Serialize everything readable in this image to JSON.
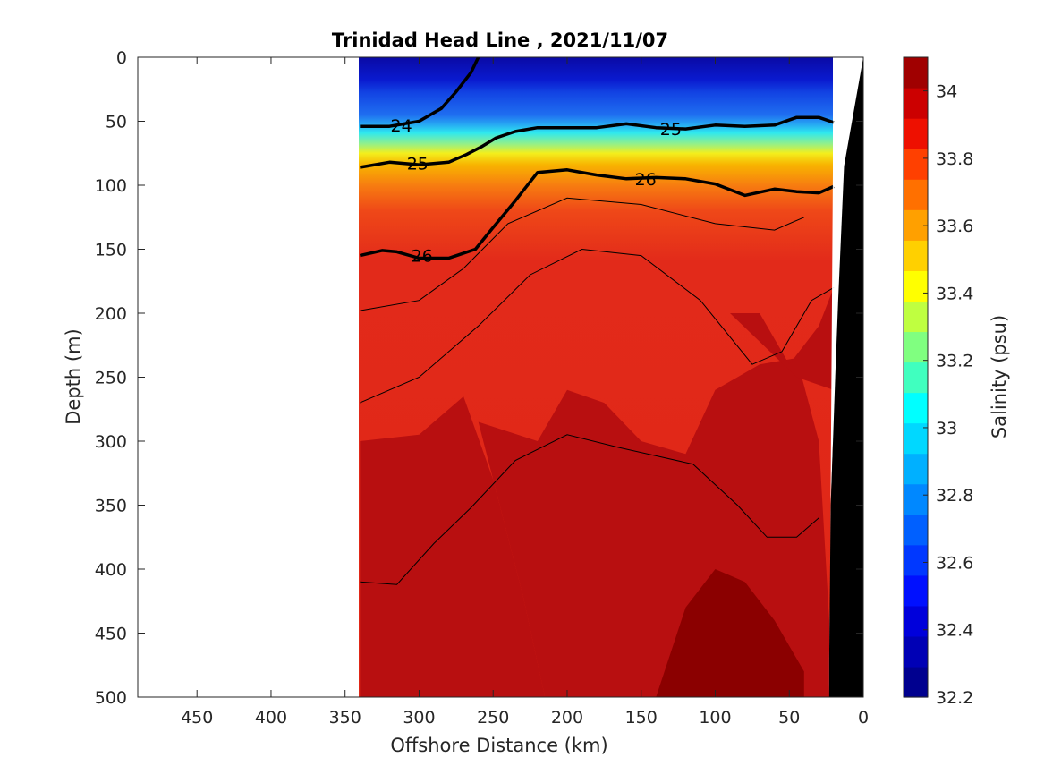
{
  "chart_data": {
    "type": "contour",
    "title": "Trinidad Head Line , 2021/11/07",
    "xlabel": "Offshore Distance (km)",
    "ylabel": "Depth (m)",
    "xlim": [
      490,
      0
    ],
    "ylim": [
      0,
      500
    ],
    "x_ticks": [
      "450",
      "400",
      "350",
      "300",
      "250",
      "200",
      "150",
      "100",
      "50",
      "0"
    ],
    "y_ticks": [
      "0",
      "50",
      "100",
      "150",
      "200",
      "250",
      "300",
      "350",
      "400",
      "450",
      "500"
    ],
    "data_extent_km": [
      340,
      20
    ],
    "colorbar": {
      "label": "Salinity (psu)",
      "range": [
        32.2,
        34.1
      ],
      "ticks": [
        "32.2",
        "32.4",
        "32.6",
        "32.8",
        "33",
        "33.2",
        "33.4",
        "33.6",
        "33.8",
        "34"
      ]
    },
    "density_contour_labels": [
      {
        "text": "24",
        "x": 312,
        "y": 53
      },
      {
        "text": "25",
        "x": 301,
        "y": 83
      },
      {
        "text": "26",
        "x": 298,
        "y": 155
      },
      {
        "text": "25",
        "x": 130,
        "y": 56
      },
      {
        "text": "26",
        "x": 147,
        "y": 95
      }
    ],
    "bold_isopycnals": [
      {
        "name": "24",
        "x": [
          340,
          320,
          300,
          285,
          275,
          265,
          260
        ],
        "y": [
          54,
          54,
          50,
          40,
          27,
          12,
          0
        ]
      },
      {
        "name": "25",
        "x": [
          340,
          320,
          300,
          280,
          268,
          258,
          248,
          235,
          220,
          200,
          180,
          160,
          140,
          120,
          100,
          80,
          60,
          45,
          30,
          20
        ],
        "y": [
          86,
          82,
          84,
          82,
          76,
          70,
          63,
          58,
          55,
          55,
          55,
          52,
          55,
          56,
          53,
          54,
          53,
          47,
          47,
          51
        ]
      },
      {
        "name": "26",
        "x": [
          340,
          325,
          315,
          300,
          280,
          262,
          250,
          235,
          220,
          200,
          180,
          160,
          140,
          120,
          100,
          80,
          60,
          45,
          30,
          20
        ],
        "y": [
          155,
          151,
          152,
          157,
          157,
          150,
          133,
          112,
          90,
          88,
          92,
          95,
          94,
          95,
          99,
          108,
          103,
          105,
          106,
          101
        ]
      }
    ],
    "thin_isopycnals": [
      {
        "x": [
          340,
          300,
          270,
          240,
          200,
          150,
          100,
          60,
          40
        ],
        "y": [
          198,
          190,
          165,
          130,
          110,
          115,
          130,
          135,
          125
        ]
      },
      {
        "x": [
          340,
          300,
          260,
          225,
          190,
          150,
          110,
          75,
          55,
          35,
          20
        ],
        "y": [
          270,
          250,
          210,
          170,
          150,
          155,
          190,
          240,
          230,
          190,
          180
        ]
      },
      {
        "x": [
          340,
          315,
          290,
          265,
          235,
          200,
          165,
          115,
          85,
          65,
          45,
          30
        ],
        "y": [
          410,
          412,
          380,
          352,
          315,
          295,
          305,
          318,
          350,
          375,
          375,
          360
        ]
      }
    ],
    "bottom_outline_km": {
      "depth": [
        0,
        85,
        190,
        250,
        350,
        470,
        500
      ],
      "x": [
        0,
        13,
        17,
        19,
        22,
        23,
        23
      ]
    }
  }
}
